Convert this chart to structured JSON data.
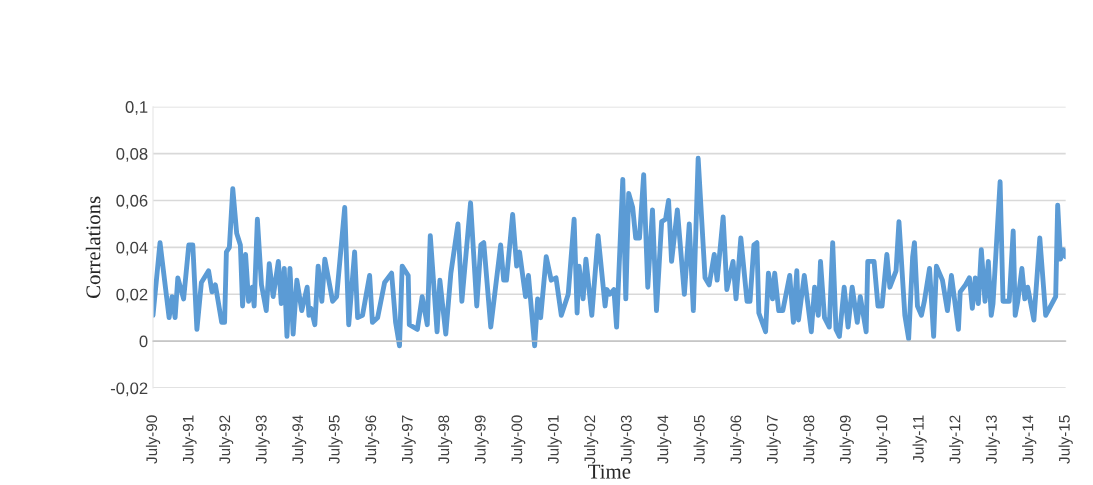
{
  "chart_data": {
    "type": "line",
    "xlabel": "Time",
    "ylabel": "Correlations",
    "x": [
      "1990-07-01",
      "1990-09-09",
      "1990-12-09",
      "1991-01-08",
      "1991-02-07",
      "1991-03-06",
      "1991-05-03",
      "1991-06-24",
      "1991-08-03",
      "1991-09-13",
      "1991-10-28",
      "1992-01-08",
      "1992-02-11",
      "1992-03-16",
      "1992-05-18",
      "1992-06-16",
      "1992-07-04",
      "1992-08-03",
      "1992-09-06",
      "1992-10-15",
      "1992-11-21",
      "1992-12-13",
      "1993-01-12",
      "1993-02-11",
      "1993-03-20",
      "1993-04-08",
      "1993-05-10",
      "1993-06-20",
      "1993-08-07",
      "1993-09-06",
      "1993-10-15",
      "1993-12-06",
      "1994-01-04",
      "1994-02-03",
      "1994-03-02",
      "1994-04-01",
      "1994-05-03",
      "1994-06-09",
      "1994-07-28",
      "1994-09-20",
      "1994-10-08",
      "1994-10-28",
      "1994-12-06",
      "1995-01-08",
      "1995-02-14",
      "1995-03-16",
      "1995-06-02",
      "1995-07-12",
      "1995-10-01",
      "1995-11-10",
      "1996-01-08",
      "1996-02-07",
      "1996-03-27",
      "1996-06-06",
      "1996-07-04",
      "1996-08-25",
      "1996-11-03",
      "1997-01-12",
      "1997-02-21",
      "1997-04-01",
      "1997-04-28",
      "1997-06-27",
      "1997-07-08",
      "1997-09-27",
      "1997-11-14",
      "1998-01-04",
      "1998-02-03",
      "1998-04-12",
      "1998-05-10",
      "1998-07-08",
      "1998-08-28",
      "1998-11-07",
      "1998-12-16",
      "1999-03-13",
      "1999-05-14",
      "1999-06-24",
      "1999-07-23",
      "1999-10-01",
      "2000-01-08",
      "2000-02-07",
      "2000-03-06",
      "2000-05-07",
      "2000-06-16",
      "2000-07-15",
      "2000-09-13",
      "2000-10-12",
      "2000-12-13",
      "2001-01-12",
      "2001-02-11",
      "2001-04-08",
      "2001-05-28",
      "2001-07-15",
      "2001-09-06",
      "2001-11-14",
      "2002-01-12",
      "2002-02-11",
      "2002-03-02",
      "2002-04-12",
      "2002-05-10",
      "2002-07-08",
      "2002-09-09",
      "2002-11-18",
      "2002-12-06",
      "2003-01-04",
      "2003-02-14",
      "2003-03-13",
      "2003-05-14",
      "2003-06-13",
      "2003-07-12",
      "2003-08-21",
      "2003-09-20",
      "2003-10-28",
      "2003-12-09",
      "2004-01-19",
      "2004-03-06",
      "2004-04-15",
      "2004-06-06",
      "2004-07-15",
      "2004-08-14",
      "2004-09-13",
      "2004-11-10",
      "2005-01-19",
      "2005-03-09",
      "2005-04-19",
      "2005-06-06",
      "2005-08-14",
      "2005-09-24",
      "2005-11-14",
      "2005-12-13",
      "2006-02-11",
      "2006-03-20",
      "2006-05-21",
      "2006-06-20",
      "2006-08-07",
      "2006-10-08",
      "2006-11-07",
      "2006-12-16",
      "2007-01-15",
      "2007-02-03",
      "2007-04-12",
      "2007-05-10",
      "2007-06-20",
      "2007-07-12",
      "2007-08-21",
      "2007-10-01",
      "2007-12-09",
      "2008-01-15",
      "2008-02-18",
      "2008-03-06",
      "2008-05-03",
      "2008-07-12",
      "2008-08-14",
      "2008-09-20",
      "2008-10-12",
      "2008-11-21",
      "2009-01-08",
      "2009-02-11",
      "2009-03-16",
      "2009-04-19",
      "2009-06-06",
      "2009-07-15",
      "2009-08-25",
      "2009-10-15",
      "2009-11-14",
      "2010-01-12",
      "2010-01-28",
      "2010-04-01",
      "2010-05-10",
      "2010-06-20",
      "2010-08-07",
      "2010-09-06",
      "2010-11-07",
      "2010-12-06",
      "2011-02-03",
      "2011-03-13",
      "2011-04-22",
      "2011-05-10",
      "2011-06-09",
      "2011-07-19",
      "2011-08-17",
      "2011-10-08",
      "2011-11-18",
      "2011-12-16",
      "2012-02-14",
      "2012-04-04",
      "2012-05-14",
      "2012-07-23",
      "2012-08-10",
      "2012-10-01",
      "2012-11-10",
      "2012-12-09",
      "2013-01-08",
      "2013-02-07",
      "2013-03-09",
      "2013-04-15",
      "2013-05-18",
      "2013-06-16",
      "2013-07-04",
      "2013-09-13",
      "2013-10-12",
      "2013-11-21",
      "2013-12-13",
      "2014-01-22",
      "2014-02-11",
      "2014-03-09",
      "2014-04-19",
      "2014-05-18",
      "2014-06-16",
      "2014-08-17",
      "2014-10-15",
      "2014-12-13",
      "2015-03-23",
      "2015-04-12",
      "2015-05-10",
      "2015-06-09",
      "2015-07-01"
    ],
    "series": [
      {
        "color": "#5b9bd5",
        "values": [
          0.011,
          0.042,
          0.01,
          0.019,
          0.01,
          0.027,
          0.018,
          0.041,
          0.041,
          0.005,
          0.025,
          0.03,
          0.021,
          0.024,
          0.008,
          0.008,
          0.038,
          0.04,
          0.065,
          0.046,
          0.041,
          0.015,
          0.037,
          0.017,
          0.023,
          0.015,
          0.052,
          0.024,
          0.013,
          0.033,
          0.019,
          0.034,
          0.016,
          0.031,
          0.002,
          0.031,
          0.003,
          0.026,
          0.013,
          0.023,
          0.011,
          0.014,
          0.007,
          0.032,
          0.017,
          0.035,
          0.017,
          0.019,
          0.057,
          0.007,
          0.038,
          0.01,
          0.011,
          0.028,
          0.008,
          0.01,
          0.025,
          0.029,
          0.008,
          -0.002,
          0.032,
          0.028,
          0.007,
          0.005,
          0.019,
          0.007,
          0.045,
          0.004,
          0.026,
          0.003,
          0.029,
          0.05,
          0.017,
          0.059,
          0.015,
          0.041,
          0.042,
          0.006,
          0.041,
          0.026,
          0.026,
          0.054,
          0.032,
          0.038,
          0.019,
          0.028,
          -0.002,
          0.018,
          0.01,
          0.036,
          0.026,
          0.027,
          0.011,
          0.02,
          0.052,
          0.012,
          0.032,
          0.018,
          0.035,
          0.011,
          0.045,
          0.015,
          0.022,
          0.02,
          0.022,
          0.006,
          0.069,
          0.018,
          0.063,
          0.057,
          0.044,
          0.044,
          0.071,
          0.023,
          0.056,
          0.013,
          0.051,
          0.052,
          0.06,
          0.034,
          0.056,
          0.02,
          0.05,
          0.013,
          0.078,
          0.027,
          0.024,
          0.037,
          0.026,
          0.053,
          0.022,
          0.034,
          0.018,
          0.044,
          0.017,
          0.017,
          0.041,
          0.042,
          0.012,
          0.004,
          0.029,
          0.018,
          0.029,
          0.013,
          0.013,
          0.028,
          0.008,
          0.03,
          0.009,
          0.028,
          0.004,
          0.023,
          0.011,
          0.034,
          0.01,
          0.006,
          0.042,
          0.005,
          0.002,
          0.023,
          0.006,
          0.023,
          0.008,
          0.019,
          0.004,
          0.034,
          0.034,
          0.015,
          0.015,
          0.037,
          0.023,
          0.03,
          0.051,
          0.011,
          0.001,
          0.036,
          0.042,
          0.015,
          0.011,
          0.017,
          0.031,
          0.002,
          0.032,
          0.026,
          0.013,
          0.028,
          0.005,
          0.021,
          0.024,
          0.027,
          0.014,
          0.027,
          0.016,
          0.039,
          0.017,
          0.034,
          0.011,
          0.016,
          0.068,
          0.017,
          0.017,
          0.017,
          0.047,
          0.011,
          0.017,
          0.031,
          0.018,
          0.023,
          0.009,
          0.044,
          0.011,
          0.019,
          0.058,
          0.035,
          0.039,
          0.036
        ]
      }
    ],
    "xlim": [
      "1990-07",
      "2015-07"
    ],
    "xticks": [
      {
        "value": "1990-07",
        "label": "July-90"
      },
      {
        "value": "1991-07",
        "label": "July-91"
      },
      {
        "value": "1992-07",
        "label": "July-92"
      },
      {
        "value": "1993-07",
        "label": "July-93"
      },
      {
        "value": "1994-07",
        "label": "July-94"
      },
      {
        "value": "1995-07",
        "label": "July-95"
      },
      {
        "value": "1996-07",
        "label": "July-96"
      },
      {
        "value": "1997-07",
        "label": "July-97"
      },
      {
        "value": "1998-07",
        "label": "July-98"
      },
      {
        "value": "1999-07",
        "label": "July-99"
      },
      {
        "value": "2000-07",
        "label": "July-00"
      },
      {
        "value": "2001-07",
        "label": "July-01"
      },
      {
        "value": "2002-07",
        "label": "July-02"
      },
      {
        "value": "2003-07",
        "label": "July-03"
      },
      {
        "value": "2004-07",
        "label": "July-04"
      },
      {
        "value": "2005-07",
        "label": "July-05"
      },
      {
        "value": "2006-07",
        "label": "July-06"
      },
      {
        "value": "2007-07",
        "label": "July-07"
      },
      {
        "value": "2008-07",
        "label": "July-08"
      },
      {
        "value": "2009-07",
        "label": "July-09"
      },
      {
        "value": "2010-07",
        "label": "July-10"
      },
      {
        "value": "2011-07",
        "label": "July-11"
      },
      {
        "value": "2012-07",
        "label": "July-12"
      },
      {
        "value": "2013-07",
        "label": "July-13"
      },
      {
        "value": "2014-07",
        "label": "July-14"
      },
      {
        "value": "2015-07",
        "label": "July-15"
      }
    ],
    "ylim": [
      -0.02,
      0.1
    ],
    "yticks": [
      {
        "value": -0.02,
        "label": "-0,02"
      },
      {
        "value": 0,
        "label": "0"
      },
      {
        "value": 0.02,
        "label": "0,02"
      },
      {
        "value": 0.04,
        "label": "0,04"
      },
      {
        "value": 0.06,
        "label": "0,06"
      },
      {
        "value": 0.08,
        "label": "0,08"
      },
      {
        "value": 0.1,
        "label": "0,1"
      }
    ],
    "grid": "y",
    "marker": "none",
    "line_style": "solid"
  }
}
